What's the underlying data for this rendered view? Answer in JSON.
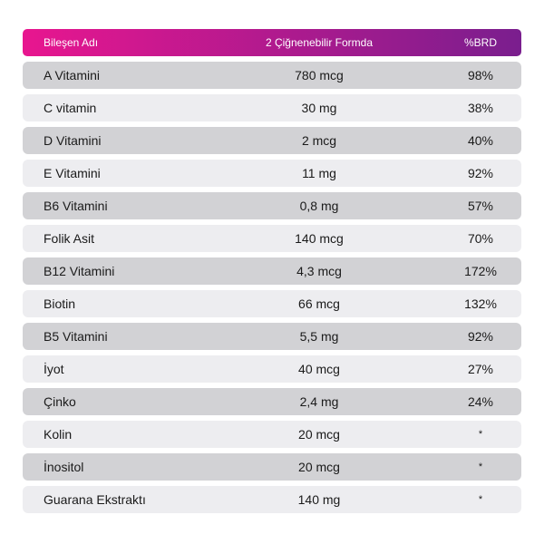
{
  "header": {
    "col_name": "Bileşen Adı",
    "col_amount": "2 Çiğnenebilir Formda",
    "col_brd": "%BRD",
    "gradient_start": "#e8168f",
    "gradient_end": "#7a1e8e"
  },
  "rows": [
    {
      "name": "A Vitamini",
      "amount": "780 mcg",
      "brd": "98%"
    },
    {
      "name": "C vitamin",
      "amount": "30 mg",
      "brd": "38%"
    },
    {
      "name": "D Vitamini",
      "amount": "2 mcg",
      "brd": "40%"
    },
    {
      "name": "E Vitamini",
      "amount": "11 mg",
      "brd": "92%"
    },
    {
      "name": "B6 Vitamini",
      "amount": "0,8 mg",
      "brd": "57%"
    },
    {
      "name": "Folik Asit",
      "amount": "140 mcg",
      "brd": "70%"
    },
    {
      "name": "B12 Vitamini",
      "amount": "4,3 mcg",
      "brd": "172%"
    },
    {
      "name": "Biotin",
      "amount": "66 mcg",
      "brd": "132%"
    },
    {
      "name": "B5 Vitamini",
      "amount": "5,5 mg",
      "brd": "92%"
    },
    {
      "name": "İyot",
      "amount": "40 mcg",
      "brd": "27%"
    },
    {
      "name": "Çinko",
      "amount": "2,4 mg",
      "brd": "24%"
    },
    {
      "name": "Kolin",
      "amount": "20 mcg",
      "brd": "*"
    },
    {
      "name": "İnositol",
      "amount": "20 mcg",
      "brd": "*"
    },
    {
      "name": "Guarana Ekstraktı",
      "amount": "140 mg",
      "brd": "*"
    }
  ]
}
